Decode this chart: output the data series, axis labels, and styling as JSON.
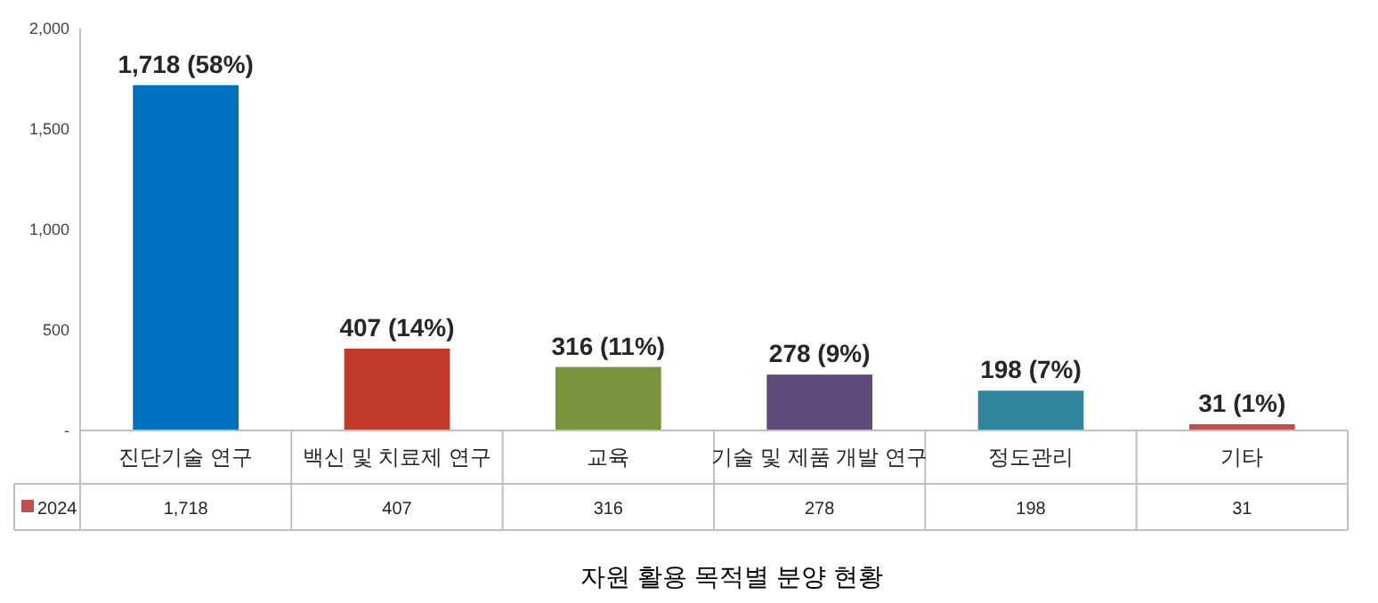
{
  "chart_data": {
    "type": "bar",
    "title": "자원 활용 목적별 분양 현황",
    "categories": [
      "진단기술 연구",
      "백신 및 치료제 연구",
      "교육",
      "기술 및 제품 개발 연구",
      "정도관리",
      "기타"
    ],
    "series": [
      {
        "name": "2024",
        "color": "#c0504d",
        "colors": [
          "#0070c0",
          "#c0392b",
          "#77933c",
          "#604a7b",
          "#31859c",
          "#c0504d"
        ],
        "values": [
          1718,
          407,
          316,
          278,
          198,
          31
        ],
        "value_labels": [
          "1,718 (58%)",
          "407 (14%)",
          "316 (11%)",
          "278 (9%)",
          "198 (7%)",
          "31 (1%)"
        ]
      }
    ],
    "ylim": [
      0,
      2000
    ],
    "yticks": [
      {
        "value": 0,
        "label": "-"
      },
      500,
      {
        "value": 1000,
        "label": "1,000"
      },
      {
        "value": 1500,
        "label": "1,500"
      },
      {
        "value": 2000,
        "label": "2,000"
      }
    ],
    "annotations": [
      "1,718",
      "407",
      "316",
      "278",
      "198",
      "31"
    ],
    "grid": false,
    "legend": "bottom left"
  }
}
